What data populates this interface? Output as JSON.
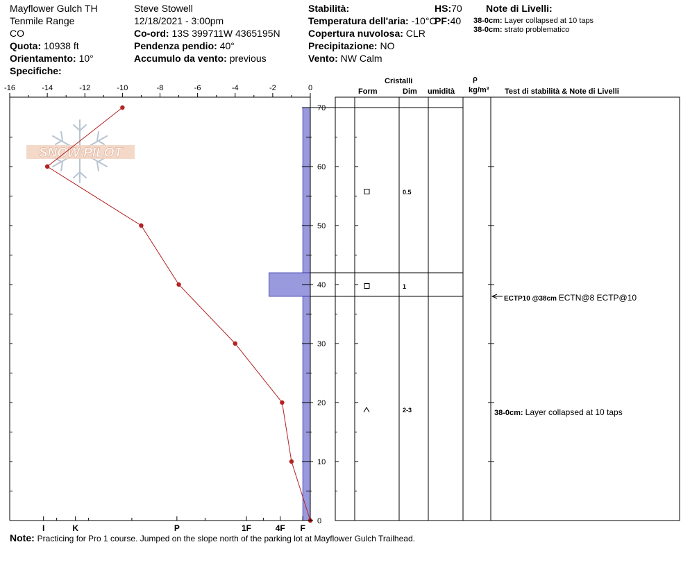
{
  "header": {
    "location": "Mayflower Gulch TH",
    "range": "Tenmile Range",
    "state": "CO",
    "elevation_label": "Quota:",
    "elevation_value": "10938 ft",
    "aspect_label": "Orientamento:",
    "aspect_value": "10°",
    "specifics_label": "Specifiche:",
    "observer": "Steve Stowell",
    "datetime": "12/18/2021 - 3:00pm",
    "coord_label": "Co-ord:",
    "coord_value": "13S 399711W 4365195N",
    "slope_label": "Pendenza pendio:",
    "slope_value": "40°",
    "wind_load_label": "Accumulo da vento:",
    "wind_load_value": "previous",
    "stability_label": "Stabilità:",
    "air_temp_label": "Temperatura dell'aria:",
    "air_temp_value": "-10°C",
    "cloud_label": "Copertura nuvolosa:",
    "cloud_value": "CLR",
    "precip_label": "Precipitazione:",
    "precip_value": "NO",
    "wind_label": "Vento:",
    "wind_value": "NW Calm",
    "hs_label": "HS:",
    "hs_value": "70",
    "pf_label": "PF:",
    "pf_value": "40",
    "layer_notes_title": "Note di Livelli:",
    "layer_notes": [
      {
        "depth": "38-0cm:",
        "text": "Layer collapsed at 10 taps"
      },
      {
        "depth": "38-0cm:",
        "text": "strato problematico"
      }
    ]
  },
  "logo": {
    "text": "SNOW PILOT"
  },
  "columns": {
    "crystals": "Cristalli",
    "form": "Form",
    "size": "Dim",
    "moisture": "umidità",
    "rho": "ρ",
    "density_unit": "kg/m³",
    "stability_notes": "Test di stabilità & Note di Livelli"
  },
  "layers": [
    {
      "top": 70,
      "bottom": 42,
      "form_symbol": "□",
      "size": "0.5"
    },
    {
      "top": 42,
      "bottom": 38,
      "form_symbol": "□",
      "size": "1"
    },
    {
      "top": 38,
      "bottom": 0,
      "form_symbol": "^",
      "size": "2-3"
    }
  ],
  "stability_tests": [
    {
      "depth": 38,
      "label": "ECTP10 @38cm",
      "detail": "ECTN@8 ECTP@10"
    }
  ],
  "layer_comments": [
    {
      "depth": 19,
      "depth_label": "38-0cm:",
      "text": "Layer collapsed at 10 taps"
    }
  ],
  "footer": {
    "note_label": "Note:",
    "note_text": "Practicing for Pro 1 course. Jumped on the slope north of the parking lot at Mayflower Gulch Trailhead."
  },
  "chart_data": {
    "type": "line",
    "temperature_axis": {
      "range": [
        -16,
        0
      ],
      "ticks": [
        -16,
        -14,
        -12,
        -10,
        -8,
        -6,
        -4,
        -2,
        0
      ]
    },
    "depth_axis": {
      "range": [
        0,
        70
      ],
      "ticks": [
        0,
        10,
        20,
        30,
        40,
        50,
        60,
        70
      ]
    },
    "hardness_ticks": [
      {
        "label": "I",
        "value": -14.2
      },
      {
        "label": "K",
        "value": -12.5
      },
      {
        "label": "P",
        "value": -7.1
      },
      {
        "label": "1F",
        "value": -3.4
      },
      {
        "label": "4F",
        "value": -1.6
      },
      {
        "label": "F",
        "value": -0.4
      }
    ],
    "temperature_profile": [
      {
        "depth": 70,
        "temp": -10
      },
      {
        "depth": 60,
        "temp": -14
      },
      {
        "depth": 50,
        "temp": -9
      },
      {
        "depth": 40,
        "temp": -7
      },
      {
        "depth": 30,
        "temp": -4
      },
      {
        "depth": 20,
        "temp": -1.5
      },
      {
        "depth": 10,
        "temp": -1
      },
      {
        "depth": 0,
        "temp": 0
      }
    ],
    "hardness_profile": [
      {
        "top": 70,
        "bottom": 42,
        "hardness": -0.4
      },
      {
        "top": 42,
        "bottom": 38,
        "hardness": -2.2
      },
      {
        "top": 38,
        "bottom": 0,
        "hardness": -0.4
      }
    ],
    "colors": {
      "temp_line": "#b22222",
      "hardness_fill": "#9999dd",
      "hardness_stroke": "#3333aa"
    }
  }
}
